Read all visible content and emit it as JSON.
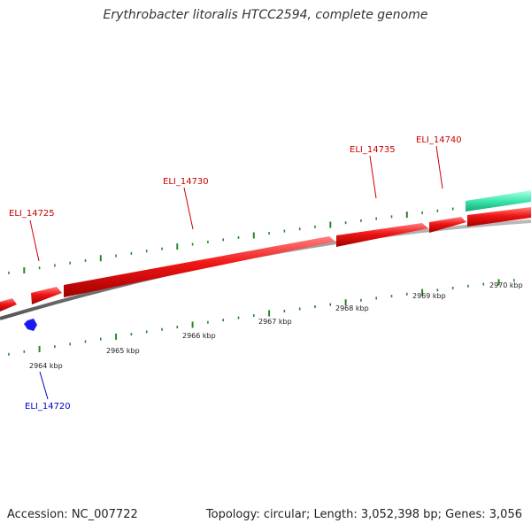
{
  "title": "Erythrobacter litoralis HTCC2594, complete genome",
  "footer": {
    "accession": "Accession: NC_007722",
    "summary": "Topology: circular; Length: 3,052,398 bp; Genes: 3,056"
  },
  "colors": {
    "forward_gene": "#e01010",
    "reverse_gene": "#1a1aee",
    "rna_gene": "#2ee8a8",
    "backbone": "#888888",
    "tick": "#228b22",
    "forward_label": "#cc0000",
    "reverse_label": "#0000cc"
  },
  "scale": {
    "unit": "kbp",
    "labels": [
      "2964 kbp",
      "2965 kbp",
      "2966 kbp",
      "2967 kbp",
      "2968 kbp",
      "2969 kbp",
      "2970 kbp"
    ]
  },
  "gene_labels": [
    {
      "text": "ELI_14720",
      "strand": "reverse"
    },
    {
      "text": "ELI_14725",
      "strand": "forward"
    },
    {
      "text": "ELI_14730",
      "strand": "forward"
    },
    {
      "text": "ELI_14735",
      "strand": "forward"
    },
    {
      "text": "ELI_14740",
      "strand": "forward"
    }
  ]
}
